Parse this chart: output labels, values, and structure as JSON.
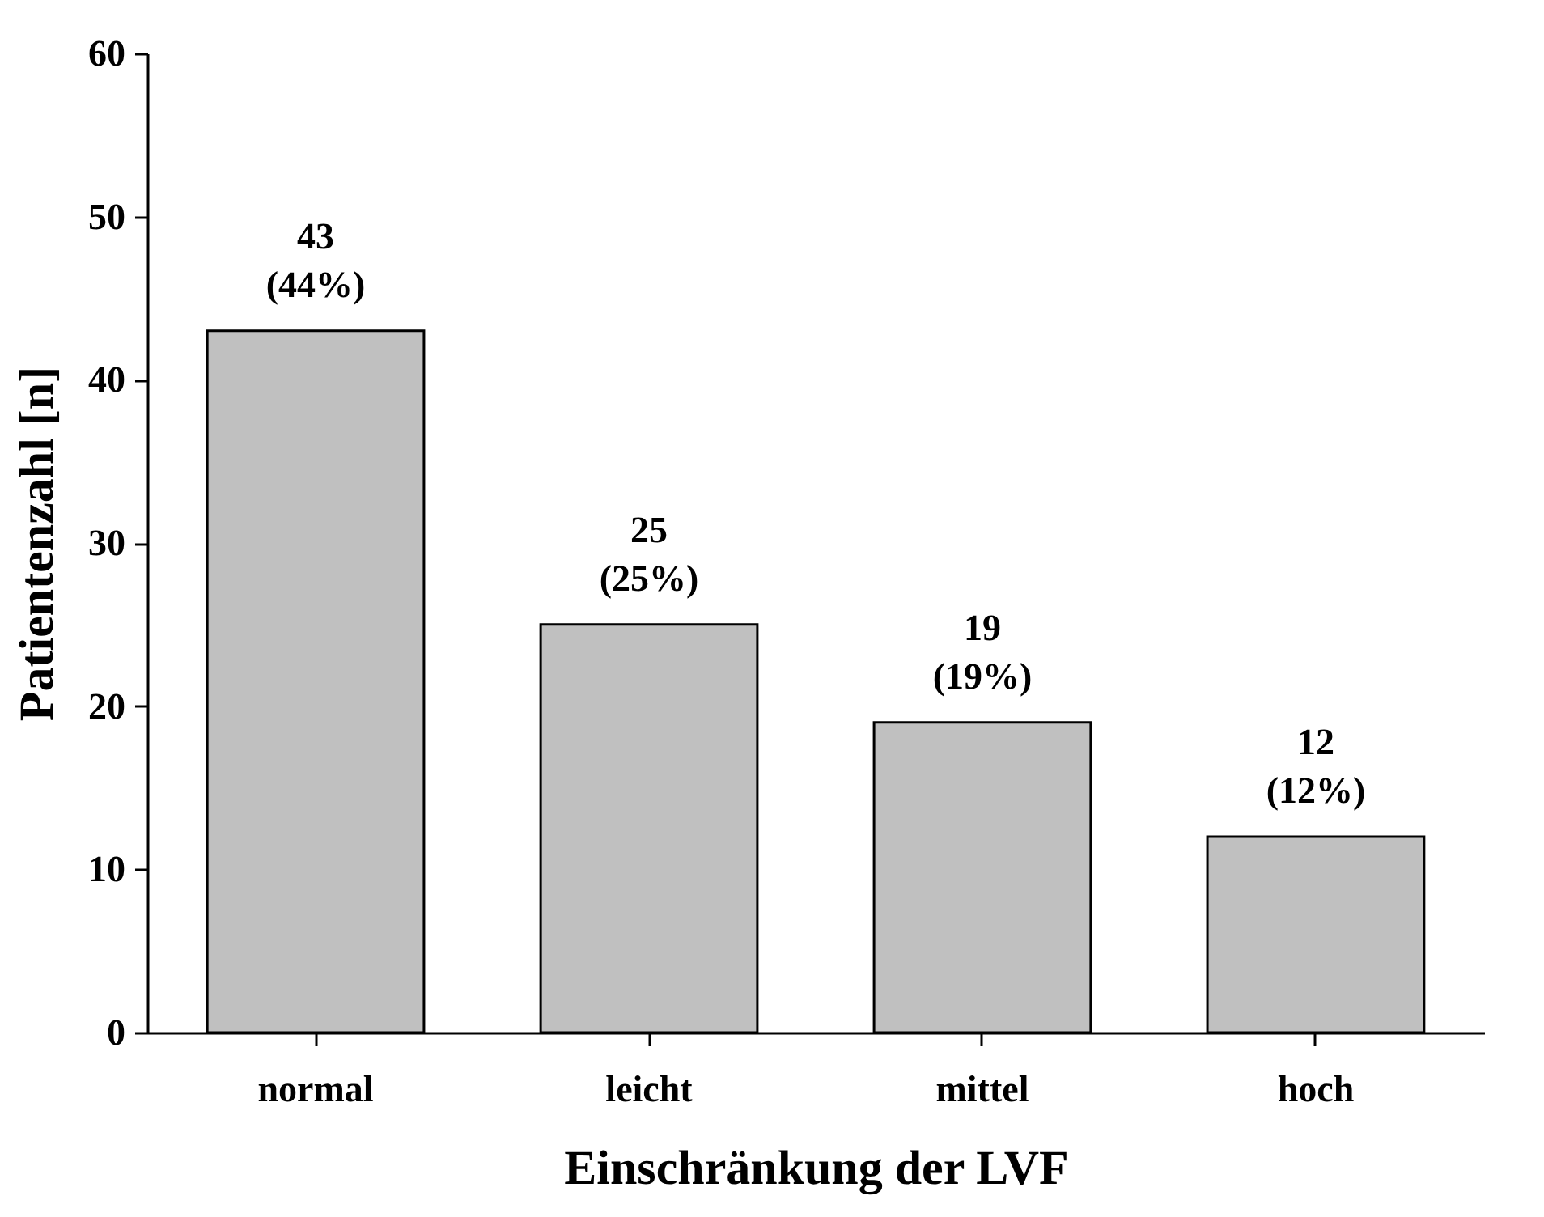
{
  "chart_data": {
    "type": "bar",
    "xlabel": "Einschränkung der LVF",
    "ylabel": "Patientenzahl [n]",
    "categories": [
      "normal",
      "leicht",
      "mittel",
      "hoch"
    ],
    "values": [
      43,
      25,
      19,
      12
    ],
    "value_labels": [
      "43\n(44%)",
      "25\n(25%)",
      "19\n(19%)",
      "12\n(12%)"
    ],
    "color": "#c0c0c0",
    "ylim": [
      0,
      60
    ],
    "yticks": [
      0,
      10,
      20,
      30,
      40,
      50,
      60
    ],
    "grid": false
  }
}
